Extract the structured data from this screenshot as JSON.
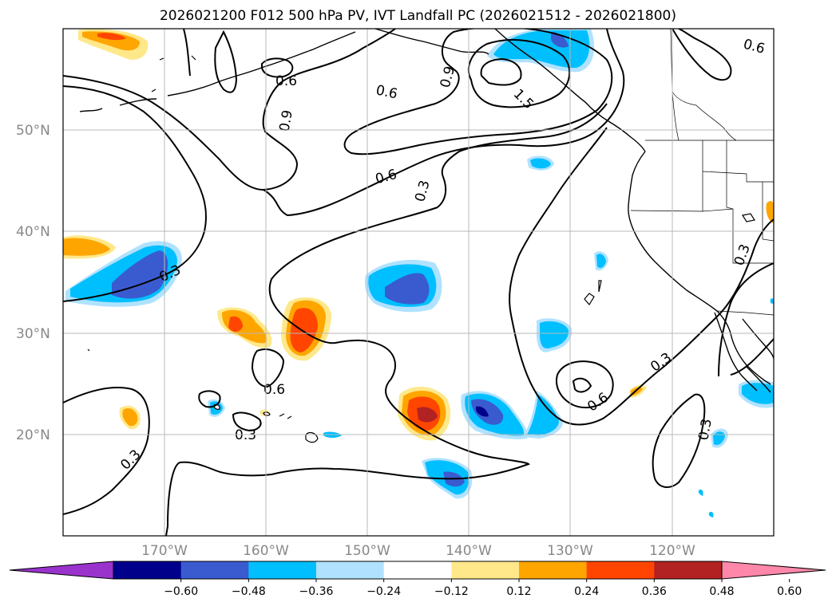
{
  "title": "2026021200 F012 500 hPa PV, IVT Landfall PC (2026021512 - 2026021800)",
  "map": {
    "lat_labels": [
      "50°N",
      "40°N",
      "30°N",
      "20°N"
    ],
    "lon_labels": [
      "170°W",
      "160°W",
      "150°W",
      "140°W",
      "130°W",
      "120°W"
    ],
    "contour_labels": [
      "0.6",
      "0.6",
      "0.9",
      "0.6",
      "0.9",
      "1.5",
      "0.6",
      "0.3",
      "0.3",
      "0.3",
      "0.6",
      "0.3",
      "0.3",
      "0.6",
      "0.3",
      "0.3"
    ]
  },
  "colorbar": {
    "ticks": [
      "−0.60",
      "−0.48",
      "−0.36",
      "−0.24",
      "−0.12",
      "0.12",
      "0.24",
      "0.36",
      "0.48",
      "0.60"
    ],
    "colors": [
      "#9933cc",
      "#00008b",
      "#3a5bd0",
      "#00bfff",
      "#b0e2ff",
      "#ffffff",
      "#ffe88a",
      "#ffa500",
      "#ff4500",
      "#b22222",
      "#ff88aa"
    ]
  }
}
